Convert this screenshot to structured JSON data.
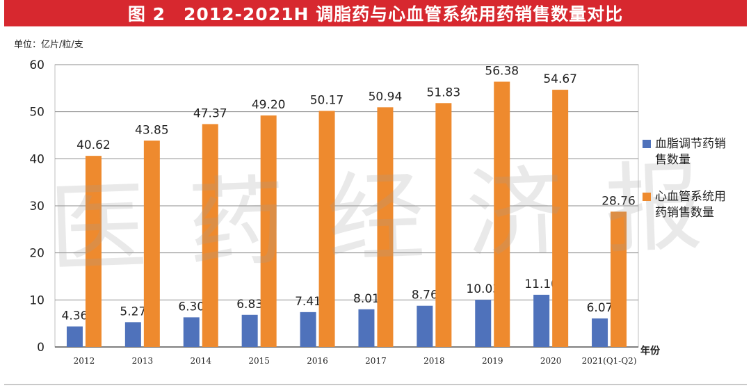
{
  "title": "图 2　2012-2021H 调脂药与心血管系统用药销售数量对比",
  "unit_label": "单位：亿片/粒/支",
  "watermark": "医药经济报",
  "colors": {
    "title_bg": "#d7282f",
    "series1": "#4f72bb",
    "series2": "#ee8a2e"
  },
  "chart_data": {
    "type": "bar",
    "title": "图 2　2012-2021H 调脂药与心血管系统用药销售数量对比",
    "xlabel": "年份",
    "ylabel": "单位：亿片/粒/支",
    "ylim": [
      0,
      60
    ],
    "yticks": [
      "0",
      "10",
      "20",
      "30",
      "40",
      "50",
      "60"
    ],
    "categories": [
      "2012",
      "2013",
      "2014",
      "2015",
      "2016",
      "2017",
      "2018",
      "2019",
      "2020",
      "2021(Q1-Q2)"
    ],
    "grid": true,
    "legend_position": "right",
    "series": [
      {
        "name": "血脂调节药销售数量",
        "color": "#4f72bb",
        "values": [
          4.36,
          5.27,
          6.3,
          6.83,
          7.41,
          8.01,
          8.76,
          10.03,
          11.1,
          6.07
        ],
        "labels": [
          "4.36",
          "5.27",
          "6.30",
          "6.83",
          "7.41",
          "8.01",
          "8.76",
          "10.03",
          "11.10",
          "6.07"
        ]
      },
      {
        "name": "心血管系统用药销售数量",
        "color": "#ee8a2e",
        "values": [
          40.62,
          43.85,
          47.37,
          49.2,
          50.17,
          50.94,
          51.83,
          56.38,
          54.67,
          28.76
        ],
        "labels": [
          "40.62",
          "43.85",
          "47.37",
          "49.20",
          "50.17",
          "50.94",
          "51.83",
          "56.38",
          "54.67",
          "28.76"
        ]
      }
    ]
  }
}
